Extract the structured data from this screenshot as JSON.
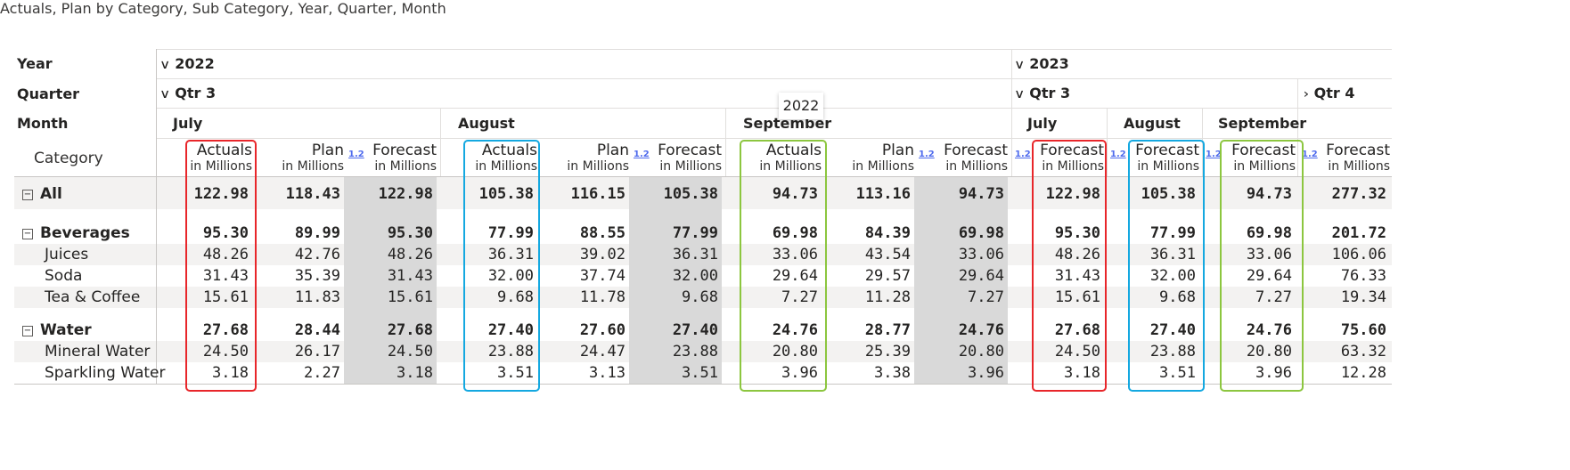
{
  "title": "Actuals, Plan by Category, Sub Category, Year, Quarter, Month",
  "row_headers": {
    "year": "Year",
    "quarter": "Quarter",
    "month": "Month",
    "category": "Category"
  },
  "years": [
    {
      "label": "2022",
      "icon": "chevron-down-icon",
      "symbol": "∨"
    },
    {
      "label": "2023",
      "icon": "chevron-down-icon",
      "symbol": "∨"
    }
  ],
  "quarters": [
    {
      "label": "Qtr 3",
      "icon": "chevron-down-icon",
      "symbol": "∨"
    },
    {
      "label": "Qtr 3",
      "icon": "chevron-down-icon",
      "symbol": "∨"
    },
    {
      "label": "Qtr 4",
      "icon": "chevron-right-icon",
      "symbol": "›"
    }
  ],
  "months": [
    "July",
    "August",
    "September",
    "July",
    "August",
    "September"
  ],
  "tooltip": "2022",
  "measure_unit": "in Millions",
  "decimal_mark": "1.2",
  "columns": [
    {
      "measure": "Actuals",
      "unit": "in Millions"
    },
    {
      "measure": "Plan",
      "unit": "in Millions"
    },
    {
      "measure": "Forecast",
      "unit": "in Millions"
    },
    {
      "measure": "Actuals",
      "unit": "in Millions"
    },
    {
      "measure": "Plan",
      "unit": "in Millions"
    },
    {
      "measure": "Forecast",
      "unit": "in Millions"
    },
    {
      "measure": "Actuals",
      "unit": "in Millions"
    },
    {
      "measure": "Plan",
      "unit": "in Millions"
    },
    {
      "measure": "Forecast",
      "unit": "in Millions"
    },
    {
      "measure": "Forecast",
      "unit": "in Millions"
    },
    {
      "measure": "Forecast",
      "unit": "in Millions"
    },
    {
      "measure": "Forecast",
      "unit": "in Millions"
    },
    {
      "measure": "Forecast",
      "unit": "in Millions"
    }
  ],
  "rows": [
    {
      "label": "All",
      "bold": true,
      "expand": "−",
      "values": [
        "122.98",
        "118.43",
        "122.98",
        "105.38",
        "116.15",
        "105.38",
        "94.73",
        "113.16",
        "94.73",
        "122.98",
        "105.38",
        "94.73",
        "277.32"
      ]
    },
    {
      "label": "Beverages",
      "bold": true,
      "expand": "−",
      "values": [
        "95.30",
        "89.99",
        "95.30",
        "77.99",
        "88.55",
        "77.99",
        "69.98",
        "84.39",
        "69.98",
        "95.30",
        "77.99",
        "69.98",
        "201.72"
      ]
    },
    {
      "label": "Juices",
      "bold": false,
      "values": [
        "48.26",
        "42.76",
        "48.26",
        "36.31",
        "39.02",
        "36.31",
        "33.06",
        "43.54",
        "33.06",
        "48.26",
        "36.31",
        "33.06",
        "106.06"
      ]
    },
    {
      "label": "Soda",
      "bold": false,
      "values": [
        "31.43",
        "35.39",
        "31.43",
        "32.00",
        "37.74",
        "32.00",
        "29.64",
        "29.57",
        "29.64",
        "31.43",
        "32.00",
        "29.64",
        "76.33"
      ]
    },
    {
      "label": "Tea & Coffee",
      "bold": false,
      "values": [
        "15.61",
        "11.83",
        "15.61",
        "9.68",
        "11.78",
        "9.68",
        "7.27",
        "11.28",
        "7.27",
        "15.61",
        "9.68",
        "7.27",
        "19.34"
      ]
    },
    {
      "label": "Water",
      "bold": true,
      "expand": "−",
      "values": [
        "27.68",
        "28.44",
        "27.68",
        "27.40",
        "27.60",
        "27.40",
        "24.76",
        "28.77",
        "24.76",
        "27.68",
        "27.40",
        "24.76",
        "75.60"
      ]
    },
    {
      "label": "Mineral Water",
      "bold": false,
      "values": [
        "24.50",
        "26.17",
        "24.50",
        "23.88",
        "24.47",
        "23.88",
        "20.80",
        "25.39",
        "20.80",
        "24.50",
        "23.88",
        "20.80",
        "63.32"
      ]
    },
    {
      "label": "Sparkling Water",
      "bold": false,
      "values": [
        "3.18",
        "2.27",
        "3.18",
        "3.51",
        "3.13",
        "3.51",
        "3.96",
        "3.38",
        "3.96",
        "3.18",
        "3.51",
        "3.96",
        "12.28"
      ]
    }
  ],
  "highlight_colors": {
    "july": "#e8262a",
    "august": "#14a8e0",
    "september": "#8cc63f"
  },
  "forecast_shade": "#d9d9d9",
  "band_color": "#f3f2f1"
}
